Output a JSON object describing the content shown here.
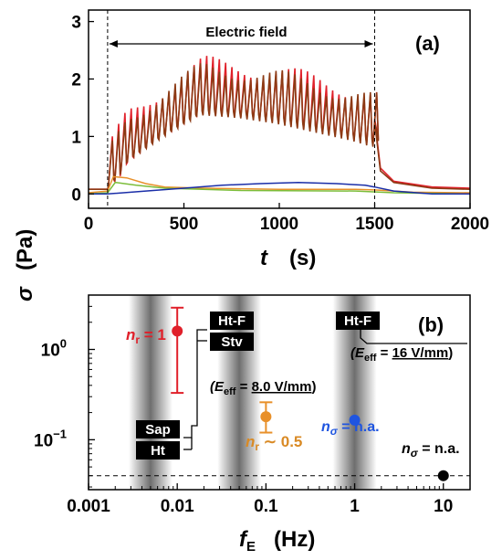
{
  "chart_data": [
    {
      "type": "line",
      "panel_label": "(a)",
      "xlabel": "t",
      "xlabel_unit": "(s)",
      "ylabel": "σ",
      "ylabel_unit": "(Pa)",
      "xlim": [
        0,
        2000
      ],
      "ylim": [
        -0.25,
        3.2
      ],
      "xticks": [
        "0",
        "500",
        "1000",
        "1500",
        "2000"
      ],
      "yticks": [
        "0",
        "1",
        "2",
        "3"
      ],
      "annotation": "Electric field",
      "field_on": 100,
      "field_off": 1500,
      "series": [
        {
          "color": "#e0202a",
          "field_on": 100,
          "field_off": 1500,
          "baseline": 0.08,
          "envelope": [
            [
              100,
              0.25
            ],
            [
              200,
              0.9
            ],
            [
              400,
              1.4
            ],
            [
              600,
              1.8
            ],
            [
              800,
              1.75
            ],
            [
              1000,
              1.65
            ],
            [
              1200,
              1.5
            ],
            [
              1400,
              1.35
            ],
            [
              1500,
              1.25
            ]
          ],
          "period": 33,
          "amplitude": 0.45,
          "tail": [
            [
              1500,
              1.3
            ],
            [
              1530,
              0.45
            ],
            [
              1600,
              0.22
            ],
            [
              1800,
              0.12
            ],
            [
              2000,
              0.1
            ]
          ]
        },
        {
          "color": "#8c3a14",
          "field_on": 100,
          "field_off": 1500,
          "baseline": 0.08,
          "envelope": [
            [
              100,
              0.25
            ],
            [
              200,
              0.9
            ],
            [
              400,
              1.35
            ],
            [
              600,
              1.75
            ],
            [
              800,
              1.7
            ],
            [
              1000,
              1.6
            ],
            [
              1200,
              1.45
            ],
            [
              1400,
              1.3
            ],
            [
              1500,
              1.2
            ]
          ],
          "period": 33,
          "amplitude": 0.42,
          "tail": [
            [
              1500,
              1.25
            ],
            [
              1530,
              0.4
            ],
            [
              1600,
              0.2
            ],
            [
              1800,
              0.1
            ],
            [
              2000,
              0.08
            ]
          ]
        },
        {
          "color": "#e8902a",
          "points": [
            [
              0,
              0.02
            ],
            [
              100,
              0.05
            ],
            [
              130,
              0.3
            ],
            [
              200,
              0.28
            ],
            [
              300,
              0.18
            ],
            [
              400,
              0.12
            ],
            [
              600,
              0.1
            ],
            [
              1000,
              0.08
            ],
            [
              1400,
              0.08
            ],
            [
              1500,
              0.07
            ],
            [
              1700,
              0.03
            ],
            [
              2000,
              0.02
            ]
          ]
        },
        {
          "color": "#7bbd3a",
          "points": [
            [
              0,
              0.0
            ],
            [
              100,
              0.02
            ],
            [
              140,
              0.2
            ],
            [
              250,
              0.15
            ],
            [
              400,
              0.1
            ],
            [
              800,
              0.06
            ],
            [
              1400,
              0.05
            ],
            [
              1600,
              0.02
            ],
            [
              2000,
              0.0
            ]
          ]
        },
        {
          "color": "#1a2ea8",
          "points": [
            [
              0,
              0.0
            ],
            [
              100,
              0.0
            ],
            [
              300,
              0.05
            ],
            [
              500,
              0.1
            ],
            [
              700,
              0.15
            ],
            [
              900,
              0.18
            ],
            [
              1100,
              0.2
            ],
            [
              1300,
              0.18
            ],
            [
              1450,
              0.15
            ],
            [
              1500,
              0.12
            ],
            [
              1600,
              0.05
            ],
            [
              1800,
              0.0
            ],
            [
              2000,
              0.0
            ]
          ]
        }
      ]
    },
    {
      "type": "scatter",
      "panel_label": "(b)",
      "xlabel": "f",
      "xlabel_sub": "E",
      "xlabel_unit": "(Hz)",
      "xscale": "log",
      "yscale": "log",
      "xlim": [
        0.001,
        20
      ],
      "ylim": [
        0.028,
        4.0
      ],
      "xticks": [
        "0.001",
        "0.01",
        "0.1",
        "1",
        "10"
      ],
      "yticks": [
        "10",
        "10"
      ],
      "ytick_exponents": [
        "0",
        "−1"
      ],
      "ytick_values": [
        1.0,
        0.1
      ],
      "dashed_baseline_y": 0.04,
      "bands": [
        0.005,
        0.05,
        1.0
      ],
      "points": [
        {
          "x": 0.01,
          "y": 1.6,
          "color": "#e0202a",
          "err_low": 0.33,
          "err_high": 2.9
        },
        {
          "x": 0.1,
          "y": 0.18,
          "color": "#e8902a",
          "err_low": 0.12,
          "err_high": 0.26
        },
        {
          "x": 1.0,
          "y": 0.165,
          "color": "#1f55e0"
        },
        {
          "x": 10.0,
          "y": 0.04,
          "color": "#000000"
        }
      ],
      "labels": {
        "nr1": "n",
        "nr1_sub": "r",
        "nr1_val": " = 1",
        "nr05": "n",
        "nr05_sub": "r",
        "nr05_val": " ∼ 0.5",
        "ns_blue": "n",
        "ns_blue_sub": "σ",
        "ns_blue_val": " = n.a.",
        "ns_black": "n",
        "ns_black_sub": "σ",
        "ns_black_val": " = n.a.",
        "box_htf1": "Ht-F",
        "box_stv": "Stv",
        "box_htf2": "Ht-F",
        "box_sap": "Sap",
        "box_ht": "Ht",
        "eeff8_pre": "(E",
        "eeff8_sub": "eff",
        "eeff8_eq": " = ",
        "eeff8_val": "8.0 V/mm",
        "eeff8_post": ")",
        "eeff16_pre": "(E",
        "eeff16_sub": "eff",
        "eeff16_eq": " = ",
        "eeff16_val": "16 V/mm",
        "eeff16_post": ")"
      }
    }
  ]
}
